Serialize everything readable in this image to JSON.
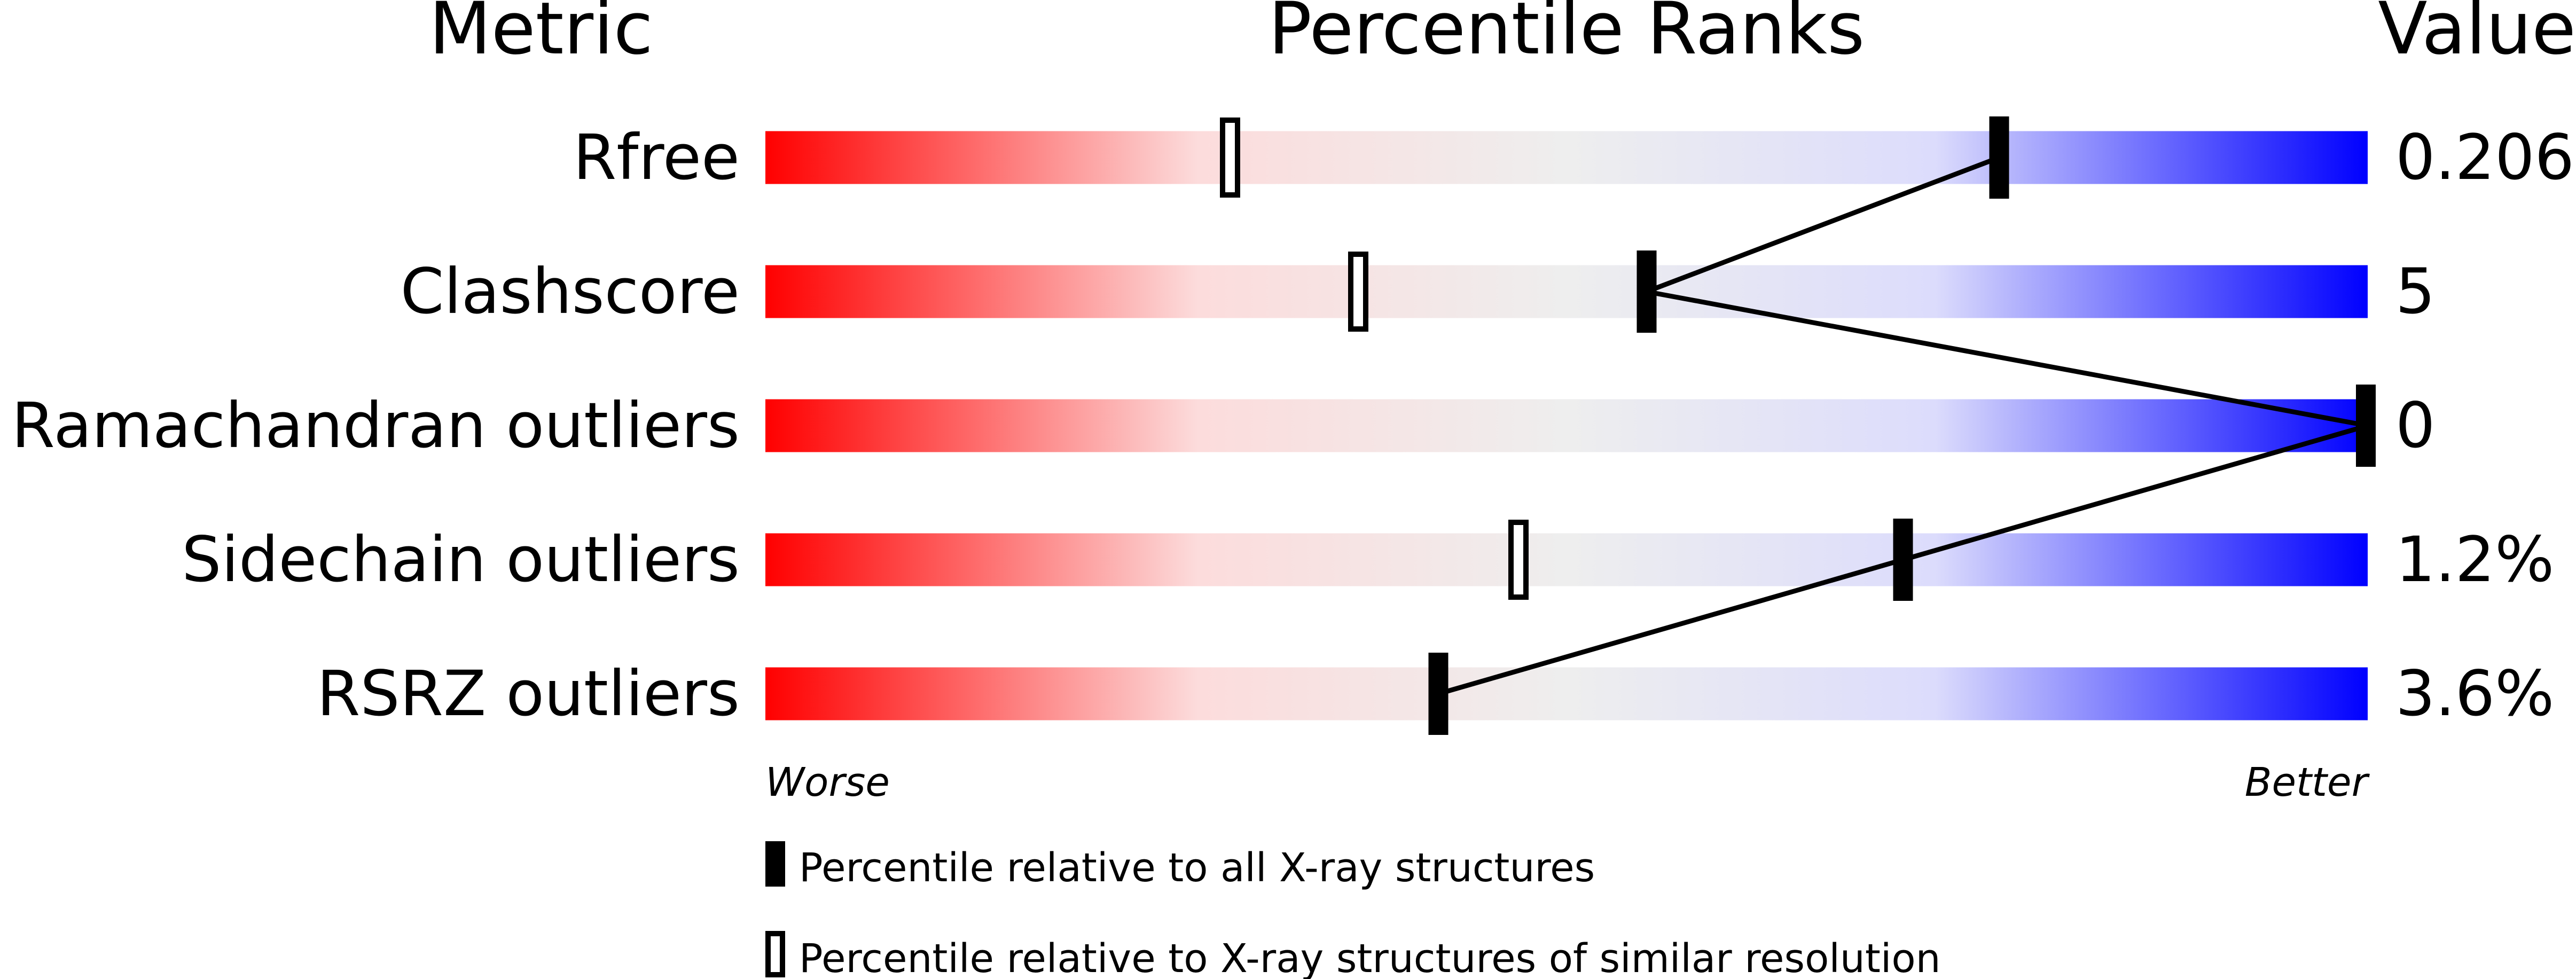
{
  "chart_data": {
    "type": "percentile-bar",
    "headers": {
      "metric": "Metric",
      "percentile": "Percentile Ranks",
      "value": "Value"
    },
    "xlim": [
      0,
      100
    ],
    "axis_labels": {
      "left": "Worse",
      "right": "Better"
    },
    "metrics": [
      {
        "name": "Rfree",
        "value": "0.206",
        "percentile_all": 77,
        "percentile_similar": 29
      },
      {
        "name": "Clashscore",
        "value": "5",
        "percentile_all": 55,
        "percentile_similar": 37
      },
      {
        "name": "Ramachandran outliers",
        "value": "0",
        "percentile_all": 100,
        "percentile_similar": null
      },
      {
        "name": "Sidechain outliers",
        "value": "1.2%",
        "percentile_all": 71,
        "percentile_similar": 47
      },
      {
        "name": "RSRZ outliers",
        "value": "3.6%",
        "percentile_all": 42,
        "percentile_similar": null
      }
    ],
    "gradient_colors": [
      "#ff0000",
      "#fcdcdc",
      "#eeeeee",
      "#dcdcfc",
      "#0000ff"
    ],
    "legend": [
      {
        "marker": "filled",
        "label": "Percentile relative to all X-ray structures"
      },
      {
        "marker": "hollow",
        "label": "Percentile relative to X-ray structures of similar resolution"
      }
    ]
  }
}
